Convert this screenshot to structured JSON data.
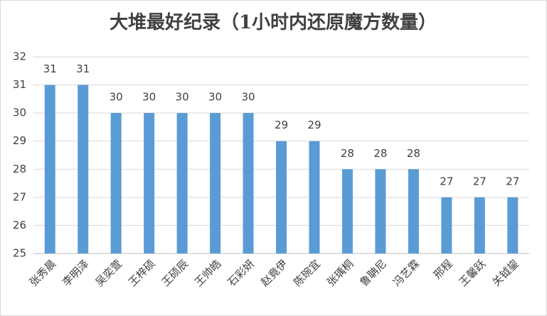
{
  "chart_data": {
    "type": "bar",
    "title": "大堆最好纪录（1小时内还原魔方数量）",
    "categories": [
      "张秀晨",
      "李明泽",
      "吴奕萱",
      "王梓硕",
      "王硕辰",
      "王帅皓",
      "石彩妍",
      "赵竟伊",
      "陈琬宜",
      "张瑀桐",
      "鲁聃尼",
      "冯艺霖",
      "邢程",
      "王馨跃",
      "关钺鋆"
    ],
    "values": [
      31,
      31,
      30,
      30,
      30,
      30,
      30,
      29,
      29,
      28,
      28,
      28,
      27,
      27,
      27
    ],
    "color": "#5b9bd5",
    "ylim": [
      25,
      32
    ],
    "yticks": [
      25,
      26,
      27,
      28,
      29,
      30,
      31,
      32
    ],
    "grid": true
  }
}
